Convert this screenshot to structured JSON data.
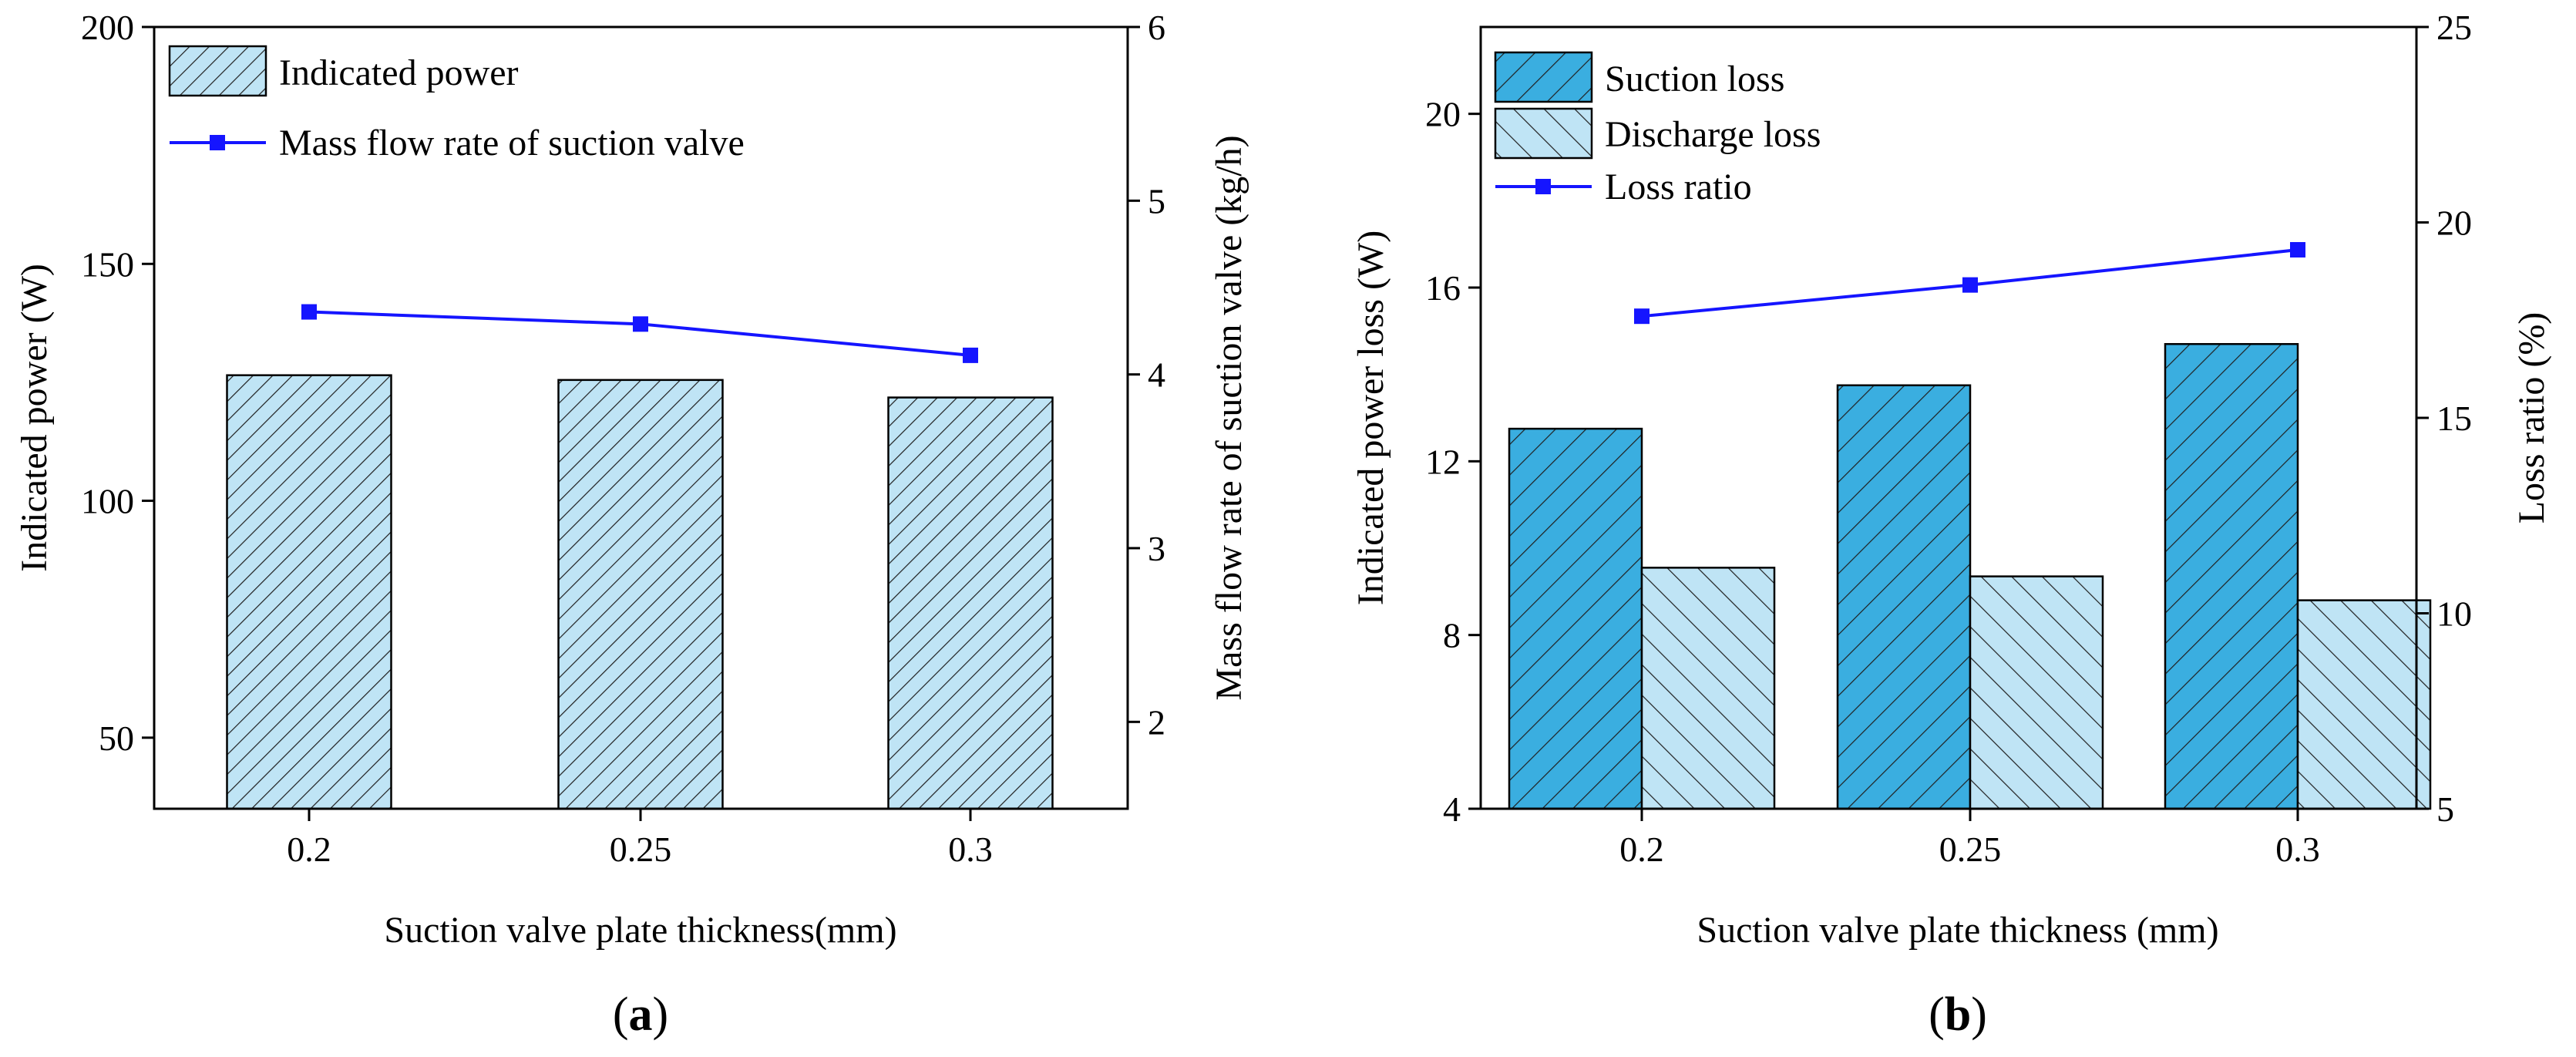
{
  "figure": {
    "panels": [
      {
        "prefix": "(",
        "letter": "a",
        "suffix": ")"
      },
      {
        "prefix": "(",
        "letter": "b",
        "suffix": ")"
      }
    ]
  },
  "chart_data": [
    {
      "type": "bar",
      "panel": "a",
      "categories": [
        "0.2",
        "0.25",
        "0.3"
      ],
      "xlabel": "Suction valve plate thickness(mm)",
      "ylabel": "Indicated power (W)",
      "ylabel_right": "Mass flow rate of suction valve (kg/h)",
      "ylim": [
        35,
        200
      ],
      "yticks": [
        50,
        100,
        150,
        200
      ],
      "ylim_right": [
        1.5,
        6
      ],
      "yticks_right": [
        2,
        3,
        4,
        5,
        6
      ],
      "legend_position": "top-left",
      "series": [
        {
          "name": "Indicated power",
          "kind": "bar",
          "axis": "left",
          "fill": "#bfe4f5",
          "hatch": "forward",
          "values": [
            126.5,
            125.5,
            121.8
          ]
        },
        {
          "name": "Mass flow rate of suction valve",
          "kind": "line",
          "axis": "right",
          "color": "#1515ff",
          "values": [
            4.36,
            4.29,
            4.11
          ]
        }
      ]
    },
    {
      "type": "bar",
      "panel": "b",
      "categories": [
        "0.2",
        "0.25",
        "0.3"
      ],
      "xlabel": "Suction valve plate thickness (mm)",
      "ylabel": "Indicated power loss (W)",
      "ylabel_right": "Loss ratio (%)",
      "ylim": [
        4,
        22
      ],
      "yticks": [
        4,
        8,
        12,
        16,
        20
      ],
      "ylim_right": [
        5,
        25
      ],
      "yticks_right": [
        5,
        10,
        15,
        20,
        25
      ],
      "legend_position": "top-left",
      "series": [
        {
          "name": "Suction loss",
          "kind": "bar",
          "axis": "left",
          "fill": "#3aaee0",
          "hatch": "forward",
          "values": [
            12.75,
            13.75,
            14.7
          ]
        },
        {
          "name": "Discharge loss",
          "kind": "bar",
          "axis": "left",
          "fill": "#bfe4f5",
          "hatch": "back",
          "values": [
            9.55,
            9.35,
            8.8
          ]
        },
        {
          "name": "Loss ratio",
          "kind": "line",
          "axis": "right",
          "color": "#1515ff",
          "values": [
            17.6,
            18.4,
            19.3
          ]
        }
      ]
    }
  ]
}
